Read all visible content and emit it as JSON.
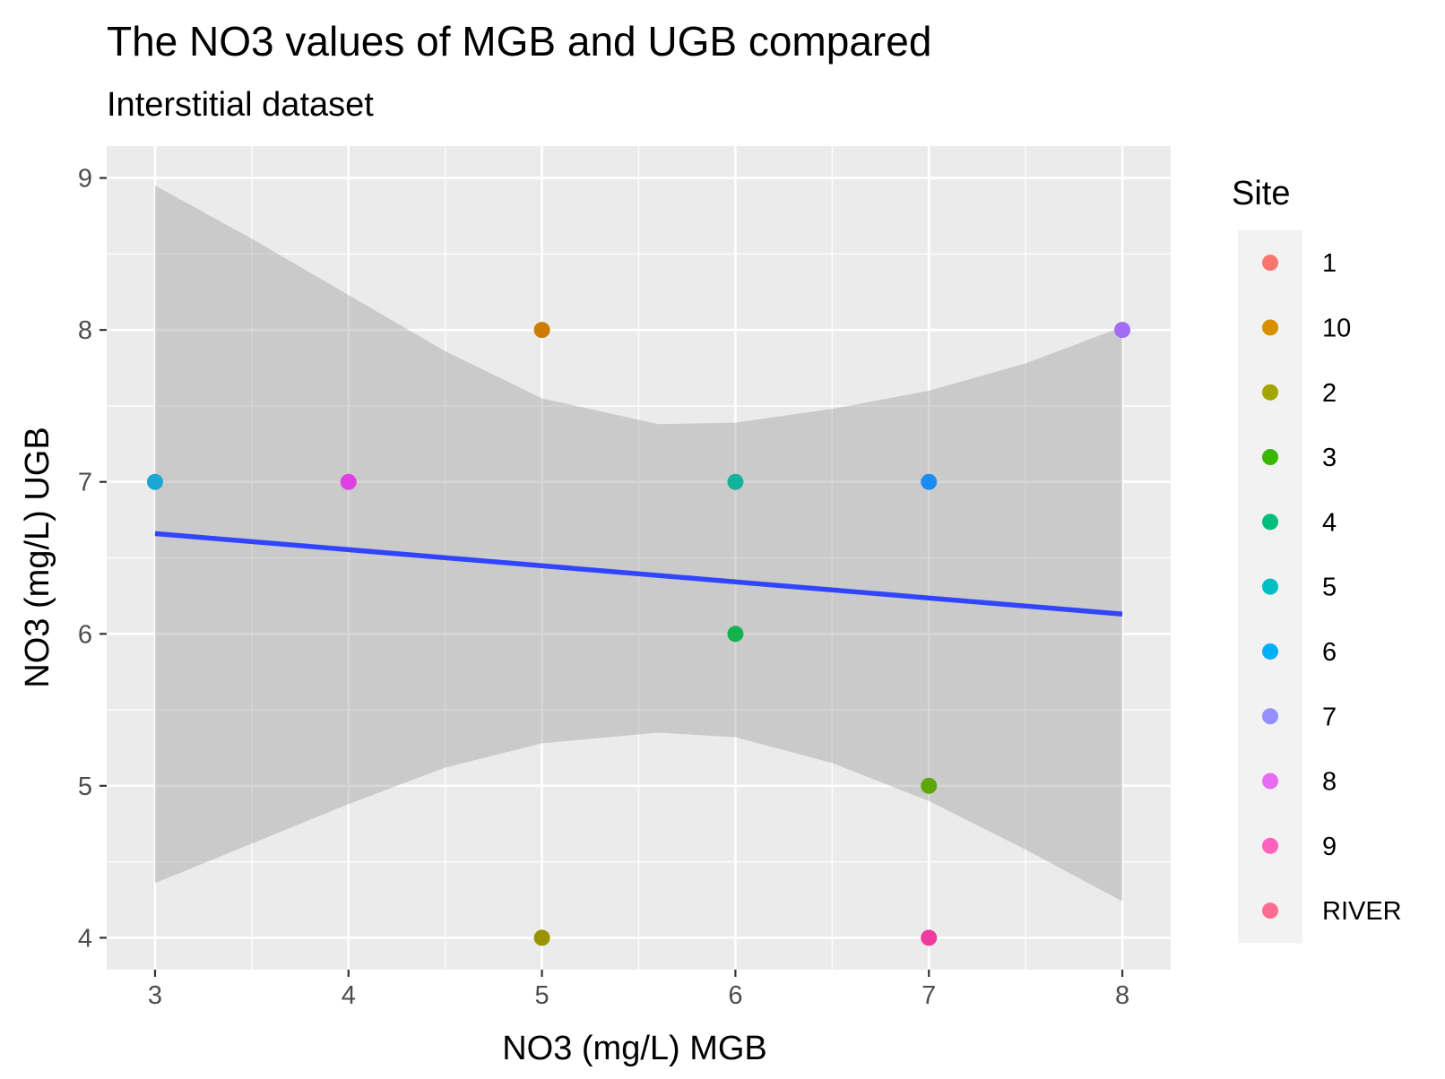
{
  "chart_data": {
    "type": "scatter",
    "title": "The NO3 values of MGB and UGB compared",
    "subtitle": "Interstitial dataset",
    "xlabel": "NO3 (mg/L) MGB",
    "ylabel": "NO3 (mg/L) UGB",
    "xlim": [
      2.75,
      8.25
    ],
    "ylim": [
      3.79,
      9.21
    ],
    "x_ticks": [
      "3",
      "4",
      "5",
      "6",
      "7",
      "8"
    ],
    "y_ticks": [
      "4",
      "5",
      "6",
      "7",
      "8",
      "9"
    ],
    "grid": true,
    "legend": {
      "title": "Site",
      "position": "right",
      "entries": [
        {
          "label": "1",
          "color": "#F8766D"
        },
        {
          "label": "10",
          "color": "#D89000"
        },
        {
          "label": "2",
          "color": "#A3A500"
        },
        {
          "label": "3",
          "color": "#39B600"
        },
        {
          "label": "4",
          "color": "#00BF7D"
        },
        {
          "label": "5",
          "color": "#00BFC4"
        },
        {
          "label": "6",
          "color": "#00B0F6"
        },
        {
          "label": "7",
          "color": "#9590FF"
        },
        {
          "label": "8",
          "color": "#E76BF3"
        },
        {
          "label": "9",
          "color": "#FF62BC"
        },
        {
          "label": "RIVER",
          "color": "#FF6C91"
        }
      ]
    },
    "points": [
      {
        "site": "6",
        "x": 3,
        "y": 7,
        "color": "#1AA7D1"
      },
      {
        "site": "9",
        "x": 4,
        "y": 7,
        "color": "#E03FE3"
      },
      {
        "site": "10",
        "x": 5,
        "y": 8,
        "color": "#CC7A00"
      },
      {
        "site": "2",
        "x": 5,
        "y": 4,
        "color": "#9A9300"
      },
      {
        "site": "5",
        "x": 6,
        "y": 7,
        "color": "#14B29B"
      },
      {
        "site": "4",
        "x": 6,
        "y": 6,
        "color": "#12B24C"
      },
      {
        "site": "7",
        "x": 7,
        "y": 7,
        "color": "#1B8CF2"
      },
      {
        "site": "3",
        "x": 7,
        "y": 5,
        "color": "#5CA80A"
      },
      {
        "site": "RIVER",
        "x": 7,
        "y": 4,
        "color": "#F03B9E"
      },
      {
        "site": "8",
        "x": 8,
        "y": 8,
        "color": "#A36CF2"
      }
    ],
    "smooth": {
      "method": "lm",
      "color": "#3145FF",
      "x": [
        3,
        8
      ],
      "y": [
        6.66,
        6.13
      ],
      "ribbon": {
        "x": [
          3,
          3.5,
          4,
          4.5,
          5,
          5.6,
          6,
          6.5,
          7,
          7.5,
          8
        ],
        "upper": [
          8.95,
          8.6,
          8.23,
          7.86,
          7.55,
          7.38,
          7.39,
          7.48,
          7.6,
          7.78,
          8.02
        ],
        "lower": [
          4.36,
          4.62,
          4.88,
          5.12,
          5.28,
          5.35,
          5.32,
          5.15,
          4.9,
          4.58,
          4.24
        ]
      }
    },
    "point_legend_colors": [
      "#F8766D",
      "#D89000",
      "#A3A500",
      "#39B600",
      "#00BF7D",
      "#00BFC4",
      "#00B0F6",
      "#1B8CF2",
      "#9590FF",
      "#E76BF3",
      "#FF62BC"
    ]
  },
  "colors": {
    "panel_background": "#EBEBEB",
    "grid_major": "#FFFFFF",
    "ribbon": "#999999",
    "legend_key_background": "#F2F2F2"
  }
}
